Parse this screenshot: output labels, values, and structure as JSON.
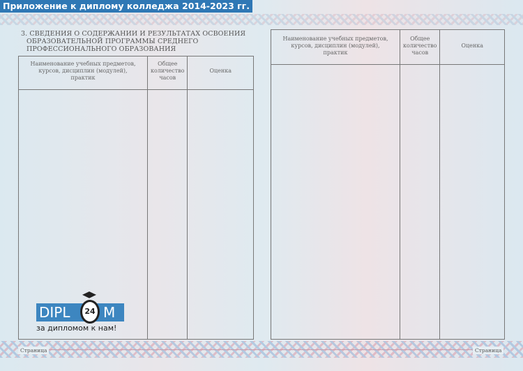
{
  "title": "Приложение к диплому колледжа 2014-2023 гг.",
  "section_heading": [
    "3. СВЕДЕНИЯ О СОДЕРЖАНИИ И РЕЗУЛЬТАТАХ ОСВОЕНИЯ",
    "ОБРАЗОВАТЕЛЬНОЙ ПРОГРАММЫ СРЕДНЕГО",
    "ПРОФЕССИОНАЛЬНОГО ОБРАЗОВАНИЯ"
  ],
  "table_headers": {
    "subject": "Наименование учебных предметов, курсов, дисциплин (модулей), практик",
    "hours": "Общее количество часов",
    "grade": "Оценка"
  },
  "footer": {
    "page_left": "Страница",
    "page_right": "Страница"
  },
  "logo": {
    "left": "DIPL",
    "circle": "24",
    "right": "M",
    "tagline": "за дипломом к нам!"
  }
}
